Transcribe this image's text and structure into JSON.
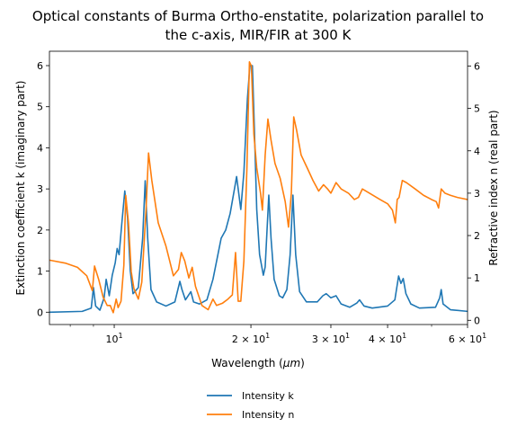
{
  "chart_data": {
    "type": "line",
    "title": [
      "Optical constants of Burma Ortho-enstatite, polarization parallel to",
      "the c-axis, MIR/FIR at 300 K"
    ],
    "xlabel_parts": [
      "Wavelength (",
      "μm",
      ")"
    ],
    "ylabel_left": "Extinction coefficient k (imaginary part)",
    "ylabel_right": "Refractive index n (real part)",
    "xscale": "log",
    "xlim": [
      7.2,
      60
    ],
    "ylim_left": [
      -0.3,
      6.35
    ],
    "ylim_right": [
      -0.1,
      6.35
    ],
    "xticks": [
      {
        "value": 10,
        "base": "10",
        "exp": "1"
      },
      {
        "value": 20,
        "base": "2 × 10",
        "exp": "1"
      },
      {
        "value": 30,
        "base": "3 × 10",
        "exp": "1"
      },
      {
        "value": 40,
        "base": "4 × 10",
        "exp": "1"
      },
      {
        "value": 60,
        "base": "6 × 10",
        "exp": "1"
      }
    ],
    "yticks_left": [
      0,
      1,
      2,
      3,
      4,
      5,
      6
    ],
    "yticks_right": [
      0,
      1,
      2,
      3,
      4,
      5,
      6
    ],
    "legend": {
      "position": "below",
      "entries": [
        "Intensity k",
        "Intensity n"
      ]
    },
    "series": [
      {
        "name": "Intensity k",
        "axis": "left",
        "color": "#1f77b4",
        "points": [
          [
            7.2,
            0.0
          ],
          [
            8.5,
            0.02
          ],
          [
            8.9,
            0.1
          ],
          [
            9.0,
            0.6
          ],
          [
            9.1,
            0.15
          ],
          [
            9.3,
            0.05
          ],
          [
            9.5,
            0.35
          ],
          [
            9.6,
            0.8
          ],
          [
            9.75,
            0.4
          ],
          [
            9.9,
            0.9
          ],
          [
            10.05,
            1.2
          ],
          [
            10.15,
            1.55
          ],
          [
            10.25,
            1.4
          ],
          [
            10.4,
            2.2
          ],
          [
            10.55,
            2.95
          ],
          [
            10.7,
            2.3
          ],
          [
            10.85,
            1.0
          ],
          [
            11.0,
            0.45
          ],
          [
            11.3,
            0.6
          ],
          [
            11.55,
            1.8
          ],
          [
            11.7,
            3.2
          ],
          [
            11.85,
            1.8
          ],
          [
            12.05,
            0.55
          ],
          [
            12.4,
            0.25
          ],
          [
            13.0,
            0.15
          ],
          [
            13.6,
            0.25
          ],
          [
            13.95,
            0.75
          ],
          [
            14.1,
            0.55
          ],
          [
            14.35,
            0.3
          ],
          [
            14.75,
            0.5
          ],
          [
            14.95,
            0.25
          ],
          [
            15.4,
            0.2
          ],
          [
            16.0,
            0.3
          ],
          [
            16.5,
            0.8
          ],
          [
            17.2,
            1.8
          ],
          [
            17.6,
            2.0
          ],
          [
            18.0,
            2.4
          ],
          [
            18.4,
            3.0
          ],
          [
            18.6,
            3.3
          ],
          [
            19.0,
            2.5
          ],
          [
            19.3,
            3.4
          ],
          [
            19.65,
            5.2
          ],
          [
            19.9,
            6.0
          ],
          [
            20.15,
            6.0
          ],
          [
            20.35,
            4.5
          ],
          [
            20.6,
            2.5
          ],
          [
            20.9,
            1.4
          ],
          [
            21.3,
            0.9
          ],
          [
            21.5,
            1.1
          ],
          [
            21.9,
            2.85
          ],
          [
            22.15,
            1.8
          ],
          [
            22.5,
            0.8
          ],
          [
            23.1,
            0.4
          ],
          [
            23.5,
            0.35
          ],
          [
            24.0,
            0.55
          ],
          [
            24.4,
            1.4
          ],
          [
            24.75,
            2.85
          ],
          [
            25.1,
            1.4
          ],
          [
            25.6,
            0.5
          ],
          [
            26.5,
            0.25
          ],
          [
            28.0,
            0.25
          ],
          [
            28.8,
            0.4
          ],
          [
            29.3,
            0.45
          ],
          [
            30.0,
            0.35
          ],
          [
            30.8,
            0.4
          ],
          [
            31.6,
            0.2
          ],
          [
            33.0,
            0.12
          ],
          [
            34.2,
            0.22
          ],
          [
            34.7,
            0.3
          ],
          [
            35.5,
            0.15
          ],
          [
            37.0,
            0.1
          ],
          [
            40.0,
            0.15
          ],
          [
            41.5,
            0.3
          ],
          [
            42.3,
            0.88
          ],
          [
            42.8,
            0.7
          ],
          [
            43.3,
            0.82
          ],
          [
            43.9,
            0.45
          ],
          [
            45.0,
            0.2
          ],
          [
            47.0,
            0.1
          ],
          [
            51.0,
            0.12
          ],
          [
            52.1,
            0.35
          ],
          [
            52.5,
            0.55
          ],
          [
            53.0,
            0.2
          ],
          [
            55.0,
            0.06
          ],
          [
            60.0,
            0.02
          ]
        ]
      },
      {
        "name": "Intensity n",
        "axis": "right",
        "color": "#ff7f0e",
        "points": [
          [
            7.2,
            1.42
          ],
          [
            7.8,
            1.35
          ],
          [
            8.3,
            1.25
          ],
          [
            8.7,
            1.05
          ],
          [
            8.95,
            0.7
          ],
          [
            9.05,
            1.28
          ],
          [
            9.25,
            0.95
          ],
          [
            9.45,
            0.55
          ],
          [
            9.65,
            0.35
          ],
          [
            9.8,
            0.35
          ],
          [
            9.95,
            0.18
          ],
          [
            10.1,
            0.5
          ],
          [
            10.2,
            0.3
          ],
          [
            10.35,
            0.45
          ],
          [
            10.5,
            1.3
          ],
          [
            10.6,
            2.95
          ],
          [
            10.75,
            2.3
          ],
          [
            10.9,
            1.15
          ],
          [
            11.05,
            0.75
          ],
          [
            11.3,
            0.5
          ],
          [
            11.5,
            0.9
          ],
          [
            11.75,
            2.6
          ],
          [
            11.9,
            3.95
          ],
          [
            12.1,
            3.3
          ],
          [
            12.5,
            2.3
          ],
          [
            13.0,
            1.75
          ],
          [
            13.5,
            1.05
          ],
          [
            13.85,
            1.2
          ],
          [
            14.05,
            1.6
          ],
          [
            14.3,
            1.4
          ],
          [
            14.6,
            1.0
          ],
          [
            14.85,
            1.25
          ],
          [
            15.1,
            0.8
          ],
          [
            15.6,
            0.35
          ],
          [
            16.1,
            0.25
          ],
          [
            16.5,
            0.5
          ],
          [
            16.8,
            0.35
          ],
          [
            17.3,
            0.4
          ],
          [
            17.8,
            0.5
          ],
          [
            18.2,
            0.6
          ],
          [
            18.5,
            1.6
          ],
          [
            18.75,
            0.45
          ],
          [
            19.0,
            0.45
          ],
          [
            19.3,
            1.4
          ],
          [
            19.6,
            3.6
          ],
          [
            19.85,
            6.1
          ],
          [
            20.05,
            6.0
          ],
          [
            20.3,
            4.4
          ],
          [
            20.6,
            3.6
          ],
          [
            21.0,
            3.0
          ],
          [
            21.2,
            2.6
          ],
          [
            21.5,
            3.9
          ],
          [
            21.8,
            4.75
          ],
          [
            22.15,
            4.25
          ],
          [
            22.6,
            3.7
          ],
          [
            23.2,
            3.35
          ],
          [
            23.8,
            2.8
          ],
          [
            24.2,
            2.2
          ],
          [
            24.55,
            3.0
          ],
          [
            24.85,
            4.8
          ],
          [
            25.2,
            4.5
          ],
          [
            25.8,
            3.9
          ],
          [
            26.6,
            3.6
          ],
          [
            27.4,
            3.3
          ],
          [
            28.2,
            3.05
          ],
          [
            28.9,
            3.2
          ],
          [
            29.5,
            3.1
          ],
          [
            30.0,
            3.0
          ],
          [
            30.8,
            3.25
          ],
          [
            31.6,
            3.1
          ],
          [
            32.8,
            3.0
          ],
          [
            33.8,
            2.85
          ],
          [
            34.5,
            2.9
          ],
          [
            35.2,
            3.1
          ],
          [
            36.5,
            3.0
          ],
          [
            38.5,
            2.85
          ],
          [
            40.0,
            2.75
          ],
          [
            41.0,
            2.6
          ],
          [
            41.6,
            2.3
          ],
          [
            42.0,
            2.85
          ],
          [
            42.4,
            2.9
          ],
          [
            43.1,
            3.3
          ],
          [
            44.0,
            3.25
          ],
          [
            46.0,
            3.1
          ],
          [
            48.0,
            2.95
          ],
          [
            50.0,
            2.85
          ],
          [
            51.2,
            2.8
          ],
          [
            51.8,
            2.65
          ],
          [
            52.5,
            3.1
          ],
          [
            53.5,
            3.0
          ],
          [
            55.0,
            2.95
          ],
          [
            57.0,
            2.9
          ],
          [
            60.0,
            2.85
          ]
        ]
      }
    ]
  }
}
